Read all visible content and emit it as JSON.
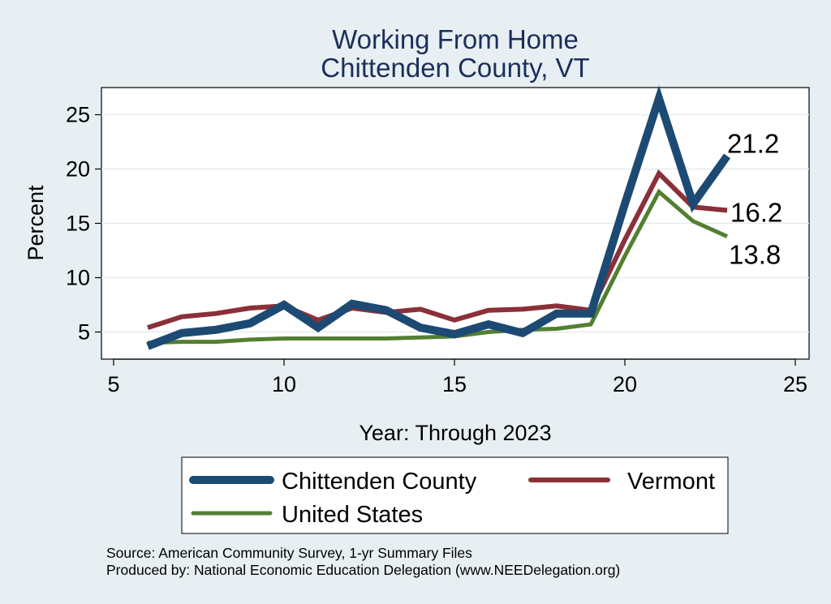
{
  "chart_data": {
    "type": "line",
    "title": [
      "Working From Home",
      "Chittenden County, VT"
    ],
    "xlabel": "Year: Through 2023",
    "ylabel": "Percent",
    "xlim": [
      5,
      25
    ],
    "ylim": [
      2.5,
      27.5
    ],
    "xticks": [
      5,
      10,
      15,
      20,
      25
    ],
    "yticks": [
      5,
      10,
      15,
      20,
      25
    ],
    "grid": true,
    "legend_position": "bottom",
    "x": [
      6,
      7,
      8,
      9,
      10,
      11,
      12,
      13,
      14,
      15,
      16,
      17,
      18,
      19,
      20,
      21,
      22,
      23
    ],
    "series": [
      {
        "name": "Chittenden County",
        "color": "#1c4a73",
        "values": [
          3.7,
          4.9,
          5.2,
          5.8,
          7.5,
          5.4,
          7.6,
          7.0,
          5.4,
          4.8,
          5.7,
          4.9,
          6.7,
          6.7,
          16.8,
          26.5,
          16.8,
          21.2
        ],
        "end_label": "21.2"
      },
      {
        "name": "Vermont",
        "color": "#8b3038",
        "values": [
          5.4,
          6.4,
          6.7,
          7.2,
          7.4,
          6.1,
          7.2,
          6.8,
          7.1,
          6.1,
          7.0,
          7.1,
          7.4,
          7.0,
          13.5,
          19.6,
          16.5,
          16.2
        ],
        "end_label": "16.2"
      },
      {
        "name": "United States",
        "color": "#527f31",
        "values": [
          4.0,
          4.1,
          4.1,
          4.3,
          4.4,
          4.4,
          4.4,
          4.4,
          4.5,
          4.6,
          5.0,
          5.2,
          5.3,
          5.7,
          12.0,
          17.9,
          15.2,
          13.8
        ],
        "end_label": "13.8"
      }
    ],
    "notes": [
      "Source: American Community Survey, 1-yr Summary Files",
      "Produced by: National Economic Education Delegation (www.NEEDelegation.org)"
    ]
  }
}
